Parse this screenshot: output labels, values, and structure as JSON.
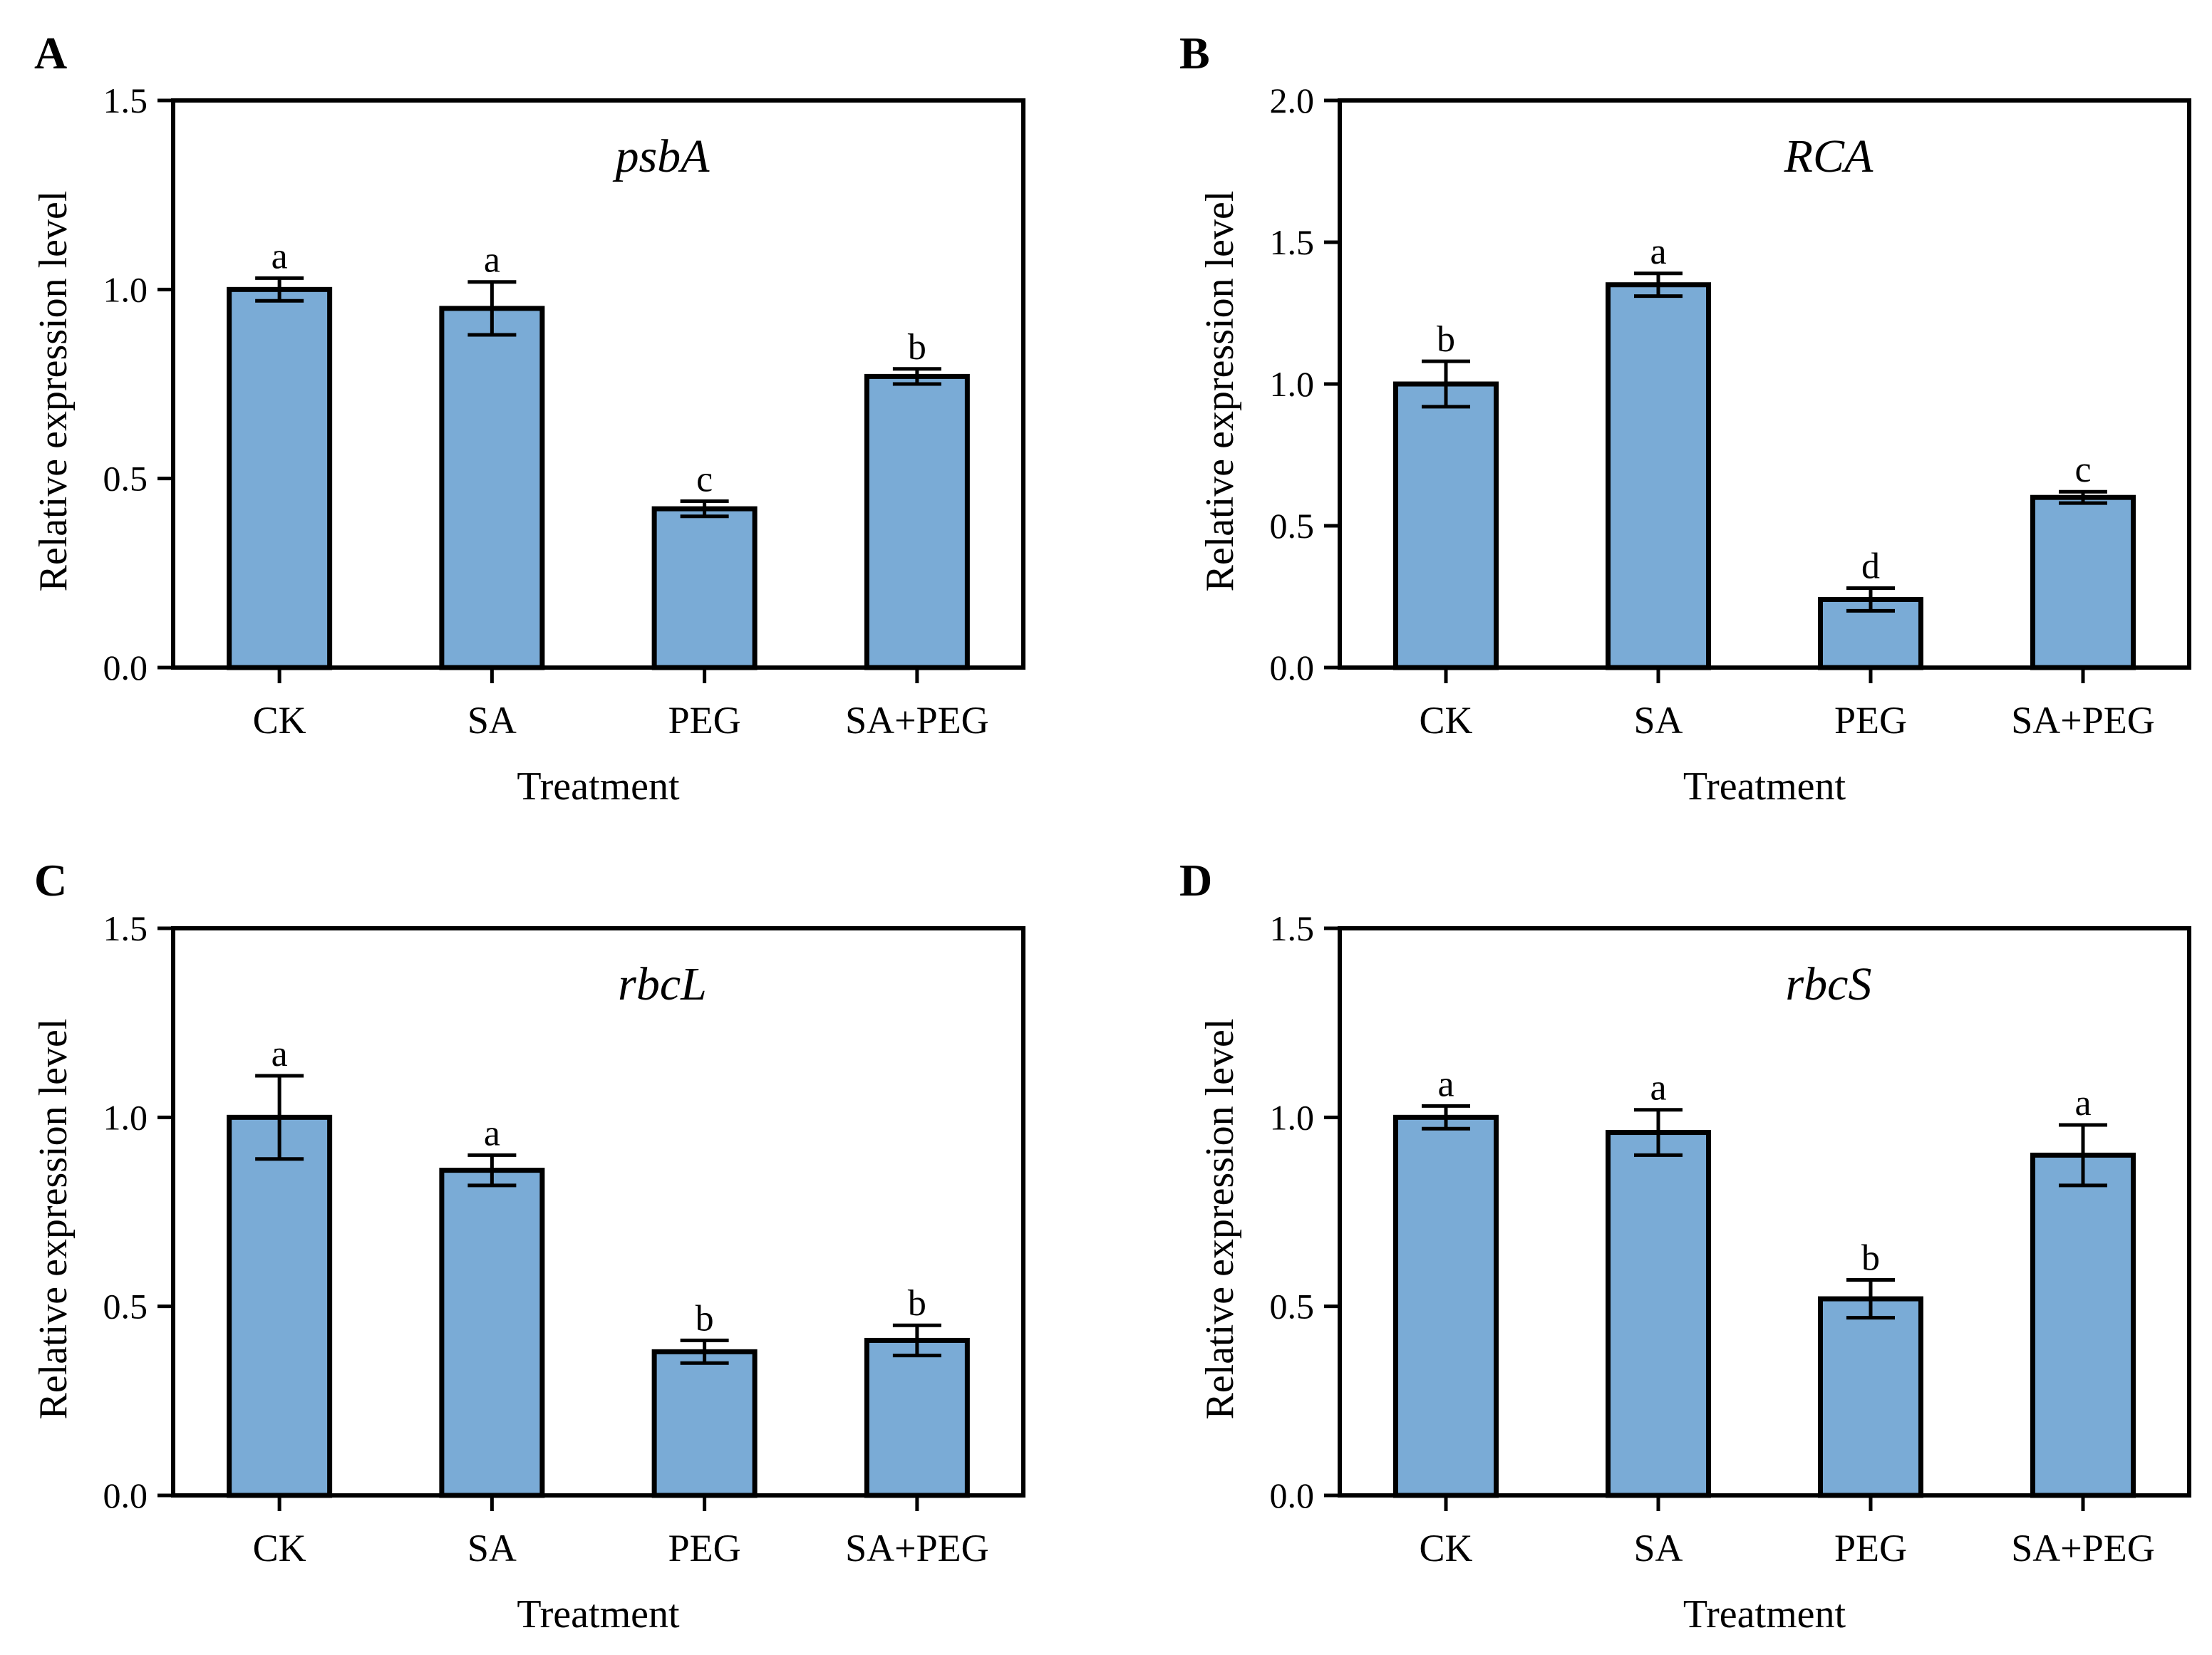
{
  "chart_data": [
    {
      "type": "bar",
      "panel_label": "A",
      "title": "psbA",
      "xlabel": "Treatment",
      "ylabel": "Relative expression level",
      "categories": [
        "CK",
        "SA",
        "PEG",
        "SA+PEG"
      ],
      "values": [
        1.0,
        0.95,
        0.42,
        0.77
      ],
      "errors": [
        0.03,
        0.07,
        0.02,
        0.02
      ],
      "significance": [
        "a",
        "a",
        "c",
        "b"
      ],
      "ylim": [
        0,
        1.5
      ],
      "yticks": [
        0,
        0.5,
        1.0,
        1.5
      ],
      "ytick_labels": [
        "0.0",
        "0.5",
        "1.0",
        "1.5"
      ],
      "bar_color": "#7aabd6"
    },
    {
      "type": "bar",
      "panel_label": "B",
      "title": "RCA",
      "xlabel": "Treatment",
      "ylabel": "Relative expression level",
      "categories": [
        "CK",
        "SA",
        "PEG",
        "SA+PEG"
      ],
      "values": [
        1.0,
        1.35,
        0.24,
        0.6
      ],
      "errors": [
        0.08,
        0.04,
        0.04,
        0.02
      ],
      "significance": [
        "b",
        "a",
        "d",
        "c"
      ],
      "ylim": [
        0,
        2.0
      ],
      "yticks": [
        0,
        0.5,
        1.0,
        1.5,
        2.0
      ],
      "ytick_labels": [
        "0.0",
        "0.5",
        "1.0",
        "1.5",
        "2.0"
      ],
      "bar_color": "#7aabd6"
    },
    {
      "type": "bar",
      "panel_label": "C",
      "title": "rbcL",
      "xlabel": "Treatment",
      "ylabel": "Relative expression level",
      "categories": [
        "CK",
        "SA",
        "PEG",
        "SA+PEG"
      ],
      "values": [
        1.0,
        0.86,
        0.38,
        0.41
      ],
      "errors": [
        0.11,
        0.04,
        0.03,
        0.04
      ],
      "significance": [
        "a",
        "a",
        "b",
        "b"
      ],
      "ylim": [
        0,
        1.5
      ],
      "yticks": [
        0,
        0.5,
        1.0,
        1.5
      ],
      "ytick_labels": [
        "0.0",
        "0.5",
        "1.0",
        "1.5"
      ],
      "bar_color": "#7aabd6"
    },
    {
      "type": "bar",
      "panel_label": "D",
      "title": "rbcS",
      "xlabel": "Treatment",
      "ylabel": "Relative expression level",
      "categories": [
        "CK",
        "SA",
        "PEG",
        "SA+PEG"
      ],
      "values": [
        1.0,
        0.96,
        0.52,
        0.9
      ],
      "errors": [
        0.03,
        0.06,
        0.05,
        0.08
      ],
      "significance": [
        "a",
        "a",
        "b",
        "a"
      ],
      "ylim": [
        0,
        1.5
      ],
      "yticks": [
        0,
        0.5,
        1.0,
        1.5
      ],
      "ytick_labels": [
        "0.0",
        "0.5",
        "1.0",
        "1.5"
      ],
      "bar_color": "#7aabd6"
    }
  ]
}
